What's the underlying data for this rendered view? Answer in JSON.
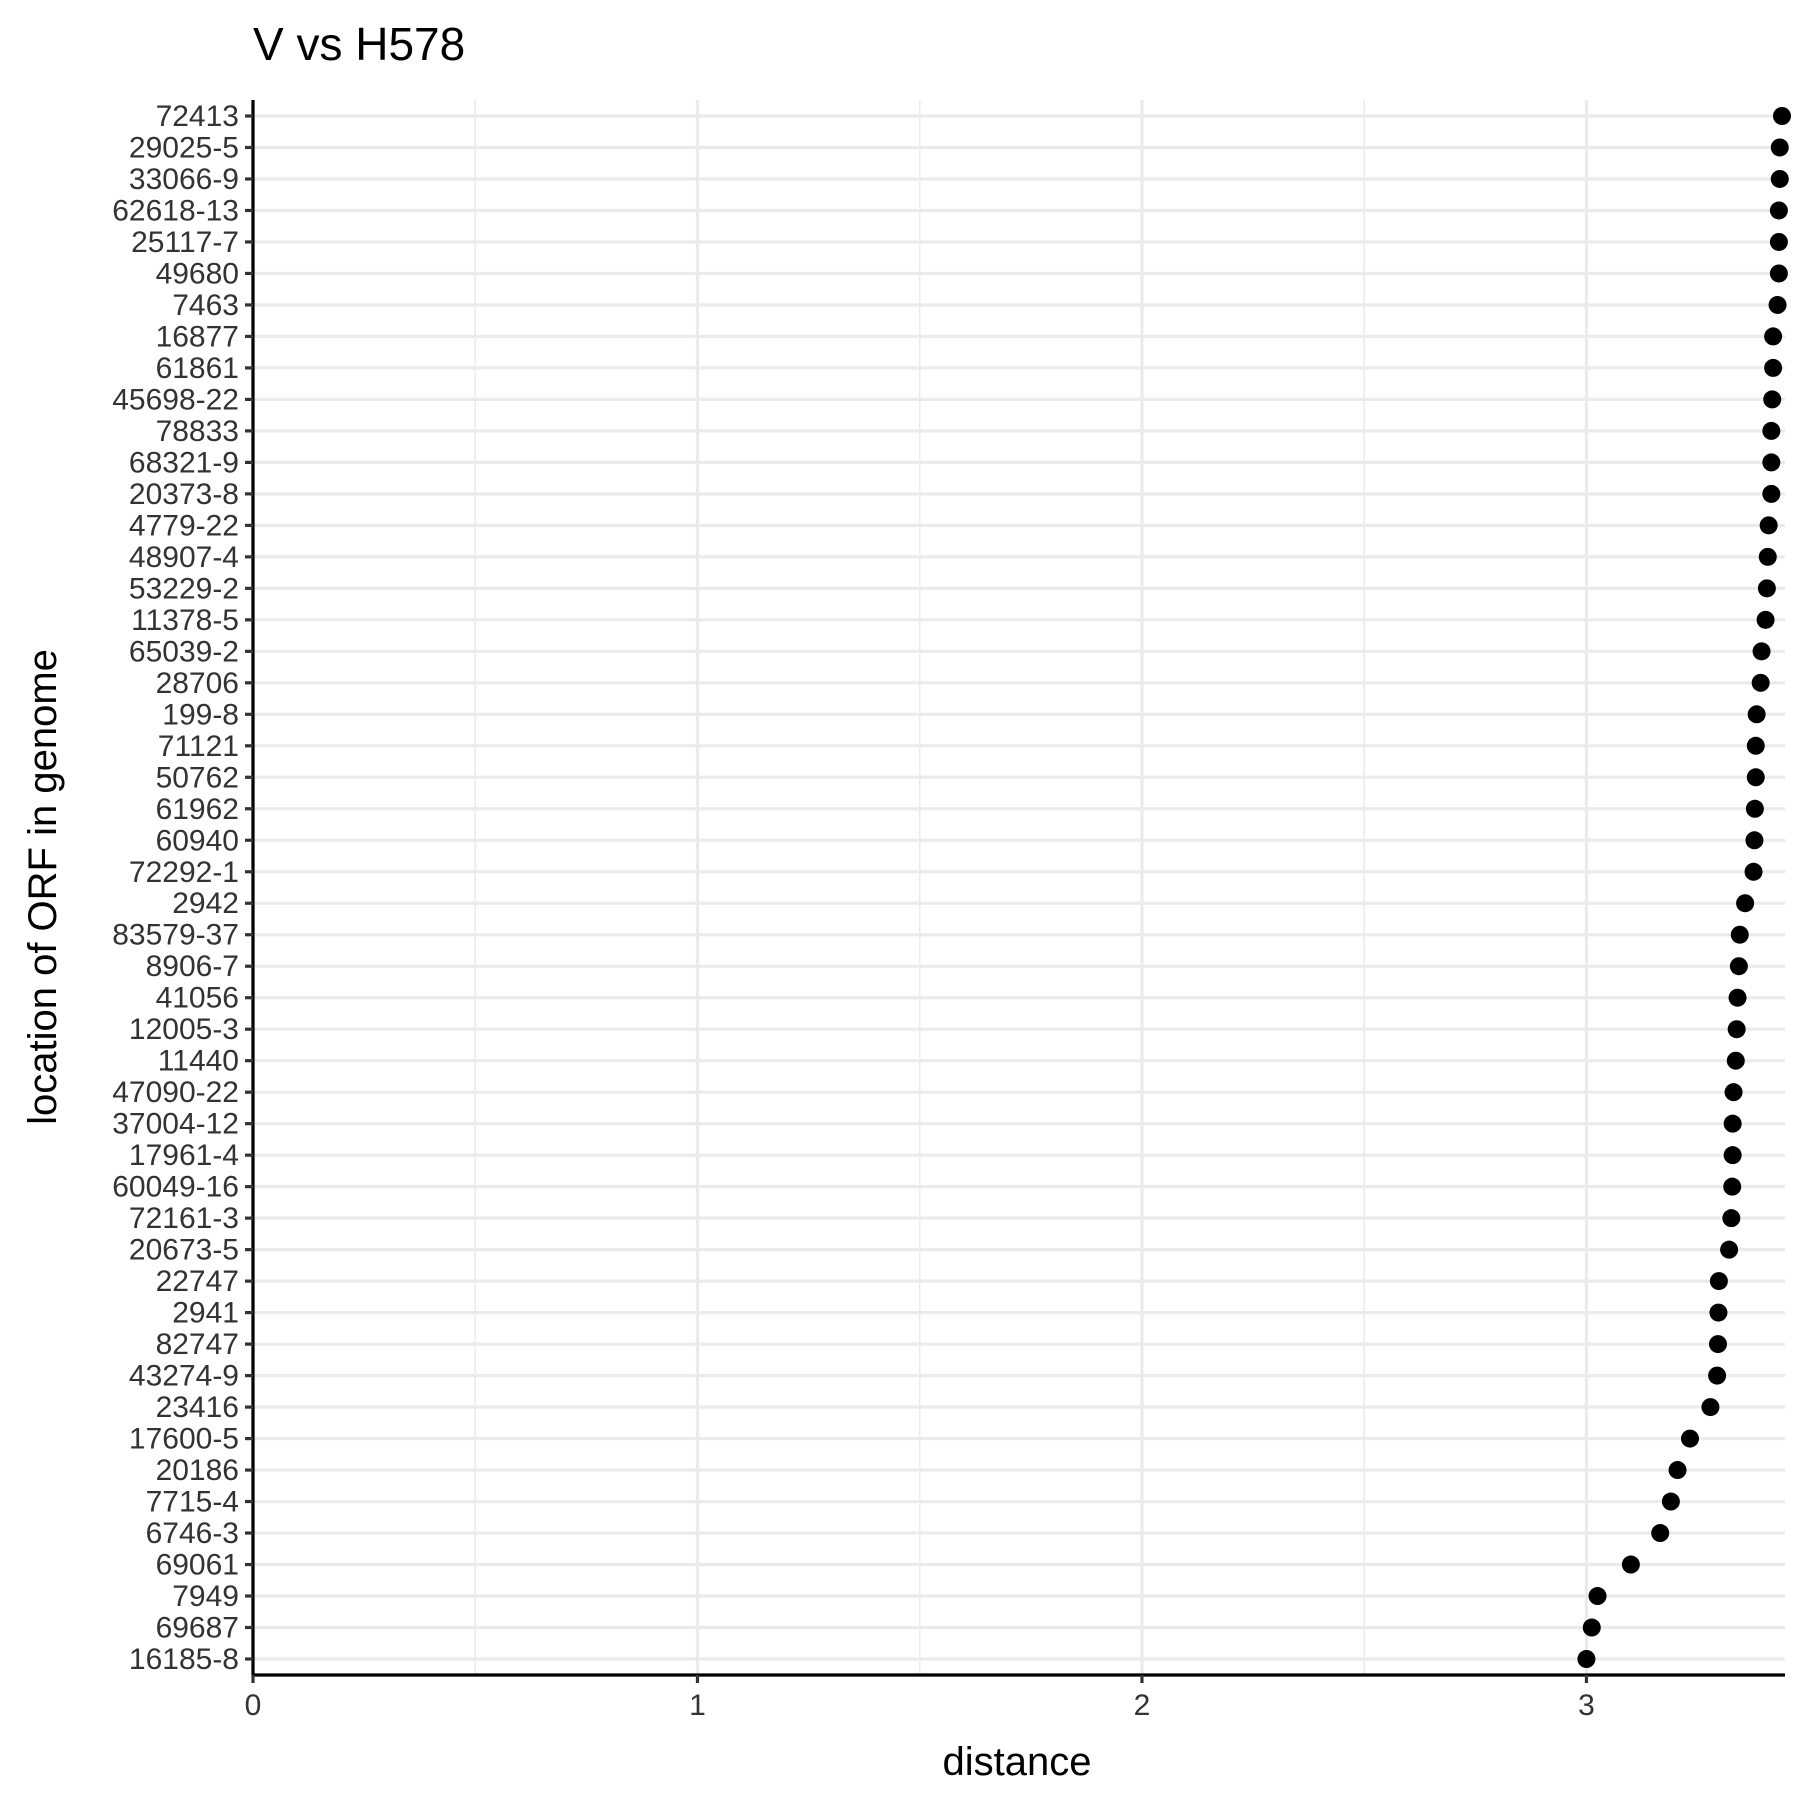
{
  "chart_data": {
    "type": "scatter",
    "title": "V vs H578",
    "xlabel": "distance",
    "ylabel": "location of ORF in genome",
    "xlim": [
      0,
      3.44
    ],
    "x_ticks": [
      0,
      1,
      2,
      3
    ],
    "x_tick_labels": [
      "0",
      "1",
      "2",
      "3"
    ],
    "x_minor_ticks": [
      0.5,
      1.5,
      2.5
    ],
    "grid": true,
    "legend": "none",
    "point_color": "#000000",
    "categories": [
      "72413",
      "29025-5",
      "33066-9",
      "62618-13",
      "25117-7",
      "49680",
      "7463",
      "16877",
      "61861",
      "45698-22",
      "78833",
      "68321-9",
      "20373-8",
      "4779-22",
      "48907-4",
      "53229-2",
      "11378-5",
      "65039-2",
      "28706",
      "199-8",
      "71121",
      "50762",
      "61962",
      "60940",
      "72292-1",
      "2942",
      "83579-37",
      "8906-7",
      "41056",
      "12005-3",
      "11440",
      "47090-22",
      "37004-12",
      "17961-4",
      "60049-16",
      "72161-3",
      "20673-5",
      "22747",
      "2941",
      "82747",
      "43274-9",
      "23416",
      "17600-5",
      "20186",
      "7715-4",
      "6746-3",
      "69061",
      "7949",
      "69687",
      "16185-8"
    ],
    "values": [
      3.44,
      3.435,
      3.435,
      3.433,
      3.433,
      3.433,
      3.43,
      3.42,
      3.42,
      3.418,
      3.416,
      3.416,
      3.416,
      3.41,
      3.408,
      3.406,
      3.403,
      3.394,
      3.392,
      3.383,
      3.381,
      3.381,
      3.379,
      3.378,
      3.376,
      3.357,
      3.345,
      3.343,
      3.34,
      3.338,
      3.336,
      3.331,
      3.329,
      3.329,
      3.328,
      3.326,
      3.321,
      3.298,
      3.297,
      3.296,
      3.294,
      3.279,
      3.233,
      3.205,
      3.19,
      3.166,
      3.1,
      3.025,
      3.012,
      3.0
    ]
  }
}
